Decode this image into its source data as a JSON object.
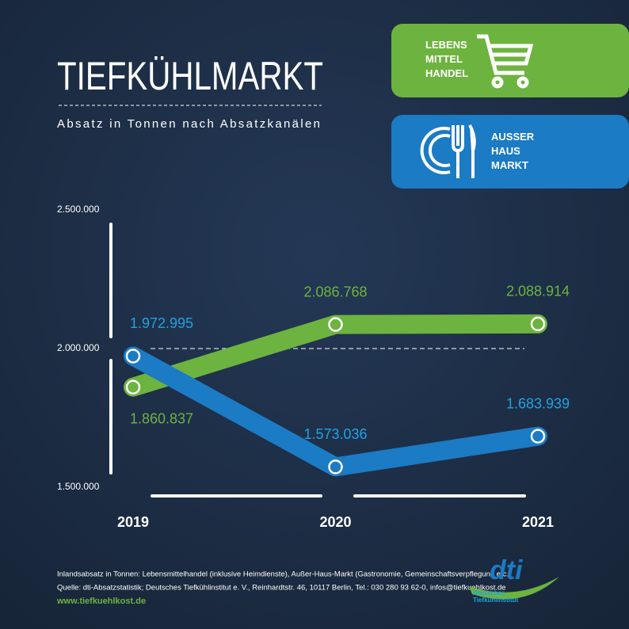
{
  "chart_data": {
    "type": "line",
    "title": "TIEFKÜHLMARKT",
    "subtitle": "Absatz in Tonnen nach Absatzkanälen",
    "categories": [
      "2019",
      "2020",
      "2021"
    ],
    "series": [
      {
        "name": "LEBENS MITTEL HANDEL",
        "color": "#6db33f",
        "label_color": "#6db33f",
        "values": [
          1860837,
          2086768,
          2088914
        ],
        "value_labels": [
          "1.860.837",
          "2.086.768",
          "2.088.914"
        ]
      },
      {
        "name": "AUSSER HAUS MARKT",
        "color": "#1b7bc4",
        "label_color": "#1fa3e3",
        "values": [
          1972995,
          1573036,
          1683939
        ],
        "value_labels": [
          "1.972.995",
          "1.573.036",
          "1.683.939"
        ]
      }
    ],
    "ylim": [
      1500000,
      2500000
    ],
    "yticks": [
      {
        "value": 1500000,
        "label": "1.500.000"
      },
      {
        "value": 2000000,
        "label": "2.000.000"
      },
      {
        "value": 2500000,
        "label": "2.500.000"
      }
    ],
    "grid": true
  },
  "footer": {
    "note": "Inlandsabsatz in Tonnen: Lebensmittelhandel (inklusive Heimdienste), Außer-Haus-Markt (Gastronomie, Gemeinschaftsverpflegung etc.)",
    "source": "Quelle: dti-Absatzstatistik; Deutsches Tiefkühlinstitut e. V., Reinhardtstr. 46, 10117 Berlin, Tel.: 030 280 93 62-0, infos@tiefkuehlkost.de",
    "website": "www.tiefkuehlkost.de",
    "logo": "dti",
    "logo_caption": "Deutsches Tiefkühlinstitut"
  }
}
